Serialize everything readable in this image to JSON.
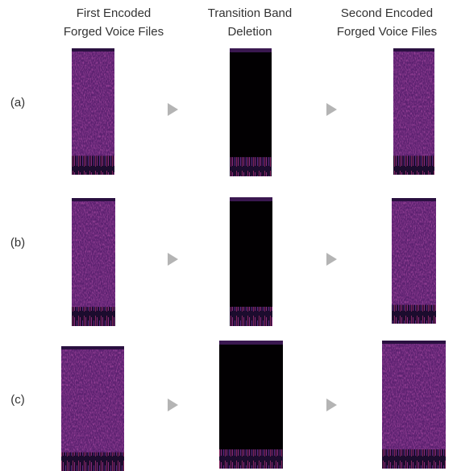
{
  "columns": [
    {
      "line1": "First  Encoded",
      "line2": "Forged  Voice  Files"
    },
    {
      "line1": "Transition  Band",
      "line2": "Deletion"
    },
    {
      "line1": "Second  Encoded",
      "line2": "Forged  Voice  Files"
    }
  ],
  "rows": [
    "(a)",
    "(b)",
    "(c)"
  ]
}
